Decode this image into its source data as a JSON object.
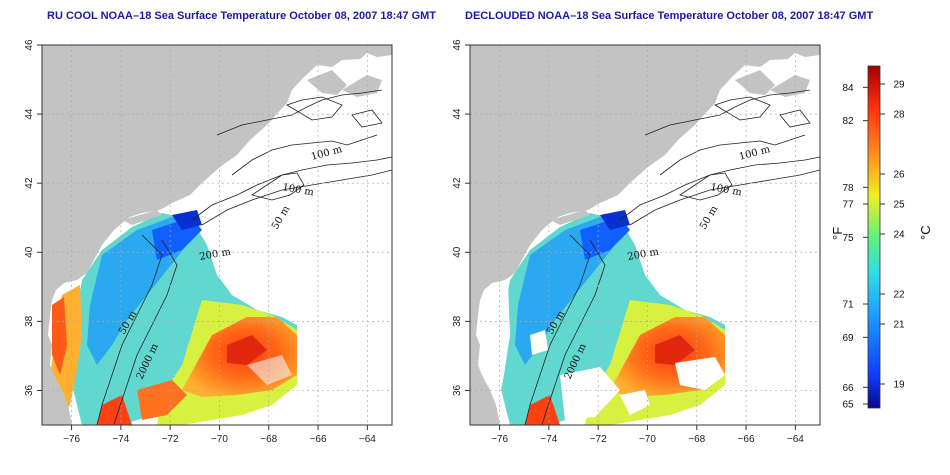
{
  "panels": [
    {
      "id": "left",
      "title": "RU COOL NOAA–18 Sea Surface Temperature October 08, 2007 18:47 GMT",
      "declouded": false
    },
    {
      "id": "right",
      "title": "DECLOUDED NOAA–18 Sea Surface Temperature October 08, 2007 18:47 GMT",
      "declouded": true
    }
  ],
  "axes": {
    "lon_ticks": [
      "−76",
      "−74",
      "−72",
      "−70",
      "−68",
      "−66",
      "−64"
    ],
    "lon_values": [
      -76,
      -74,
      -72,
      -70,
      -68,
      -66,
      -64
    ],
    "lat_ticks": [
      "36",
      "38",
      "40",
      "42",
      "44",
      "46"
    ],
    "lat_values": [
      36,
      38,
      40,
      42,
      44,
      46
    ],
    "lon_range": [
      -77.2,
      -63.0
    ],
    "lat_range": [
      35.0,
      46.0
    ]
  },
  "contour_labels": [
    "100 m",
    "100 m",
    "50 m",
    "200 m",
    "50 m",
    "2000 m"
  ],
  "colorbar": {
    "fahrenheit_label": "°F",
    "celsius_label": "°C",
    "fahrenheit_ticks": [
      "84",
      "82",
      "78",
      "77",
      "75",
      "71",
      "69",
      "66",
      "65"
    ],
    "celsius_ticks": [
      "29",
      "28",
      "26",
      "25",
      "24",
      "22",
      "21",
      "19"
    ],
    "range_celsius": [
      18.2,
      29.6
    ],
    "colors": [
      "#08088a",
      "#1040ff",
      "#20a0ff",
      "#30e0e0",
      "#60f080",
      "#f0f020",
      "#ff9020",
      "#ff3010",
      "#a00000"
    ]
  },
  "colors": {
    "land": "#c3c3c3",
    "grid": "#aaaaaa",
    "title": "#1a1aa8"
  }
}
